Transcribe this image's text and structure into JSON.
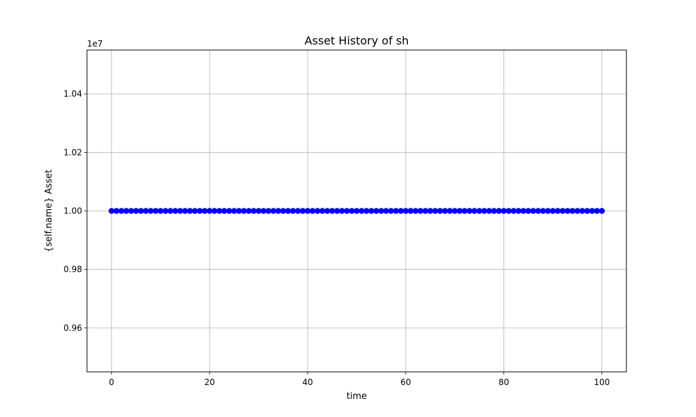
{
  "chart_data": {
    "type": "line",
    "title": "Asset History of sh",
    "xlabel": "time",
    "ylabel": "{self.name} Asset",
    "y_offset_text": "1e7",
    "x": [
      0,
      1,
      2,
      3,
      4,
      5,
      6,
      7,
      8,
      9,
      10,
      11,
      12,
      13,
      14,
      15,
      16,
      17,
      18,
      19,
      20,
      21,
      22,
      23,
      24,
      25,
      26,
      27,
      28,
      29,
      30,
      31,
      32,
      33,
      34,
      35,
      36,
      37,
      38,
      39,
      40,
      41,
      42,
      43,
      44,
      45,
      46,
      47,
      48,
      49,
      50,
      51,
      52,
      53,
      54,
      55,
      56,
      57,
      58,
      59,
      60,
      61,
      62,
      63,
      64,
      65,
      66,
      67,
      68,
      69,
      70,
      71,
      72,
      73,
      74,
      75,
      76,
      77,
      78,
      79,
      80,
      81,
      82,
      83,
      84,
      85,
      86,
      87,
      88,
      89,
      90,
      91,
      92,
      93,
      94,
      95,
      96,
      97,
      98,
      99,
      100
    ],
    "series": [
      {
        "constant_value": 10000000,
        "count": 101,
        "marker": "circle",
        "color": "#0000ff"
      }
    ],
    "xlim": [
      -5,
      105
    ],
    "ylim": [
      9450000,
      10550000
    ],
    "xticks": [
      0,
      20,
      40,
      60,
      80,
      100
    ],
    "xtick_labels": [
      "0",
      "20",
      "40",
      "60",
      "80",
      "100"
    ],
    "yticks": [
      9600000,
      9800000,
      10000000,
      10200000,
      10400000
    ],
    "ytick_labels": [
      "0.96",
      "0.98",
      "1.00",
      "1.02",
      "1.04"
    ],
    "grid": true,
    "colors": {
      "grid": "#b0b0b0",
      "axis": "#000000",
      "series": "#0000ff"
    }
  }
}
